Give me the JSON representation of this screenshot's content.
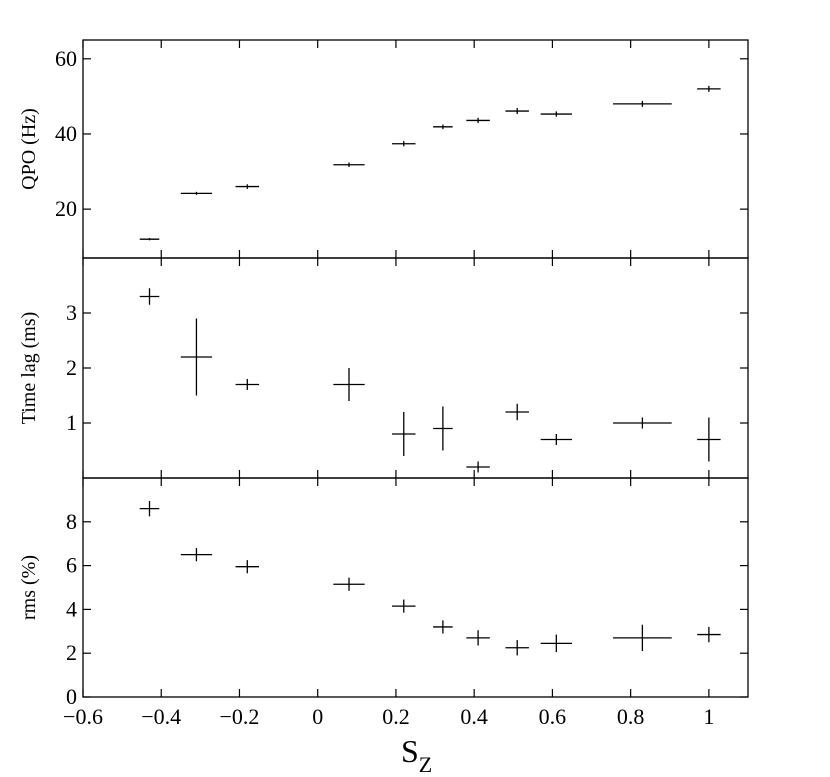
{
  "figure": {
    "x_label": "S",
    "x_label_subscript": "Z"
  },
  "chart_data": [
    {
      "type": "scatter",
      "panel": "top",
      "ylabel": "QPO (Hz)",
      "xlim": [
        -0.6,
        1.1
      ],
      "ylim": [
        7,
        65
      ],
      "yticks": [
        20,
        40,
        60
      ],
      "xticks": [
        -0.6,
        -0.4,
        -0.2,
        0,
        0.2,
        0.4,
        0.6,
        0.8,
        1
      ],
      "x_tick_labels": [],
      "error_bars": true,
      "points": [
        {
          "x": -0.43,
          "y": 12.0,
          "xerr": 0.025,
          "yerr": 0.3
        },
        {
          "x": -0.31,
          "y": 24.2,
          "xerr": 0.04,
          "yerr": 0.4
        },
        {
          "x": -0.18,
          "y": 26.0,
          "xerr": 0.03,
          "yerr": 0.6
        },
        {
          "x": 0.08,
          "y": 31.8,
          "xerr": 0.04,
          "yerr": 0.6
        },
        {
          "x": 0.22,
          "y": 37.4,
          "xerr": 0.03,
          "yerr": 0.7
        },
        {
          "x": 0.32,
          "y": 41.9,
          "xerr": 0.025,
          "yerr": 0.6
        },
        {
          "x": 0.41,
          "y": 43.6,
          "xerr": 0.03,
          "yerr": 0.7
        },
        {
          "x": 0.51,
          "y": 46.1,
          "xerr": 0.03,
          "yerr": 0.8
        },
        {
          "x": 0.61,
          "y": 45.3,
          "xerr": 0.04,
          "yerr": 0.7
        },
        {
          "x": 0.83,
          "y": 48.0,
          "xerr": 0.075,
          "yerr": 0.8
        },
        {
          "x": 1.0,
          "y": 52.0,
          "xerr": 0.03,
          "yerr": 0.8
        }
      ]
    },
    {
      "type": "scatter",
      "panel": "middle",
      "ylabel": "Time lag (ms)",
      "xlim": [
        -0.6,
        1.1
      ],
      "ylim": [
        0,
        4
      ],
      "yticks": [
        1,
        2,
        3
      ],
      "xticks": [
        -0.6,
        -0.4,
        -0.2,
        0,
        0.2,
        0.4,
        0.6,
        0.8,
        1
      ],
      "x_tick_labels": [],
      "error_bars": true,
      "points": [
        {
          "x": -0.43,
          "y": 3.3,
          "xerr": 0.025,
          "yerr": 0.15
        },
        {
          "x": -0.31,
          "y": 2.2,
          "xerr": 0.04,
          "yerr": 0.7
        },
        {
          "x": -0.18,
          "y": 1.7,
          "xerr": 0.03,
          "yerr": 0.1
        },
        {
          "x": 0.08,
          "y": 1.7,
          "xerr": 0.04,
          "yerr": 0.3
        },
        {
          "x": 0.22,
          "y": 0.8,
          "xerr": 0.03,
          "yerr": 0.4
        },
        {
          "x": 0.32,
          "y": 0.9,
          "xerr": 0.025,
          "yerr": 0.4
        },
        {
          "x": 0.41,
          "y": 0.2,
          "xerr": 0.03,
          "yerr": 0.1
        },
        {
          "x": 0.51,
          "y": 1.2,
          "xerr": 0.03,
          "yerr": 0.15
        },
        {
          "x": 0.61,
          "y": 0.7,
          "xerr": 0.04,
          "yerr": 0.1
        },
        {
          "x": 0.83,
          "y": 1.0,
          "xerr": 0.075,
          "yerr": 0.1
        },
        {
          "x": 1.0,
          "y": 0.7,
          "xerr": 0.03,
          "yerr": 0.4
        }
      ]
    },
    {
      "type": "scatter",
      "panel": "bottom",
      "ylabel": "rms (%)",
      "xlim": [
        -0.6,
        1.1
      ],
      "ylim": [
        0,
        10
      ],
      "yticks": [
        0,
        2,
        4,
        6,
        8
      ],
      "xticks": [
        -0.6,
        -0.4,
        -0.2,
        0,
        0.2,
        0.4,
        0.6,
        0.8,
        1
      ],
      "x_tick_labels": [
        "−0.6",
        "−0.4",
        "−0.2",
        "0",
        "0.2",
        "0.4",
        "0.6",
        "0.8",
        "1"
      ],
      "error_bars": true,
      "points": [
        {
          "x": -0.43,
          "y": 8.6,
          "xerr": 0.025,
          "yerr": 0.35
        },
        {
          "x": -0.31,
          "y": 6.5,
          "xerr": 0.04,
          "yerr": 0.3
        },
        {
          "x": -0.18,
          "y": 5.95,
          "xerr": 0.03,
          "yerr": 0.3
        },
        {
          "x": 0.08,
          "y": 5.15,
          "xerr": 0.04,
          "yerr": 0.3
        },
        {
          "x": 0.22,
          "y": 4.15,
          "xerr": 0.03,
          "yerr": 0.3
        },
        {
          "x": 0.32,
          "y": 3.2,
          "xerr": 0.025,
          "yerr": 0.3
        },
        {
          "x": 0.41,
          "y": 2.7,
          "xerr": 0.03,
          "yerr": 0.35
        },
        {
          "x": 0.51,
          "y": 2.25,
          "xerr": 0.03,
          "yerr": 0.35
        },
        {
          "x": 0.61,
          "y": 2.45,
          "xerr": 0.04,
          "yerr": 0.4
        },
        {
          "x": 0.83,
          "y": 2.7,
          "xerr": 0.075,
          "yerr": 0.6
        },
        {
          "x": 1.0,
          "y": 2.85,
          "xerr": 0.03,
          "yerr": 0.35
        }
      ]
    }
  ]
}
